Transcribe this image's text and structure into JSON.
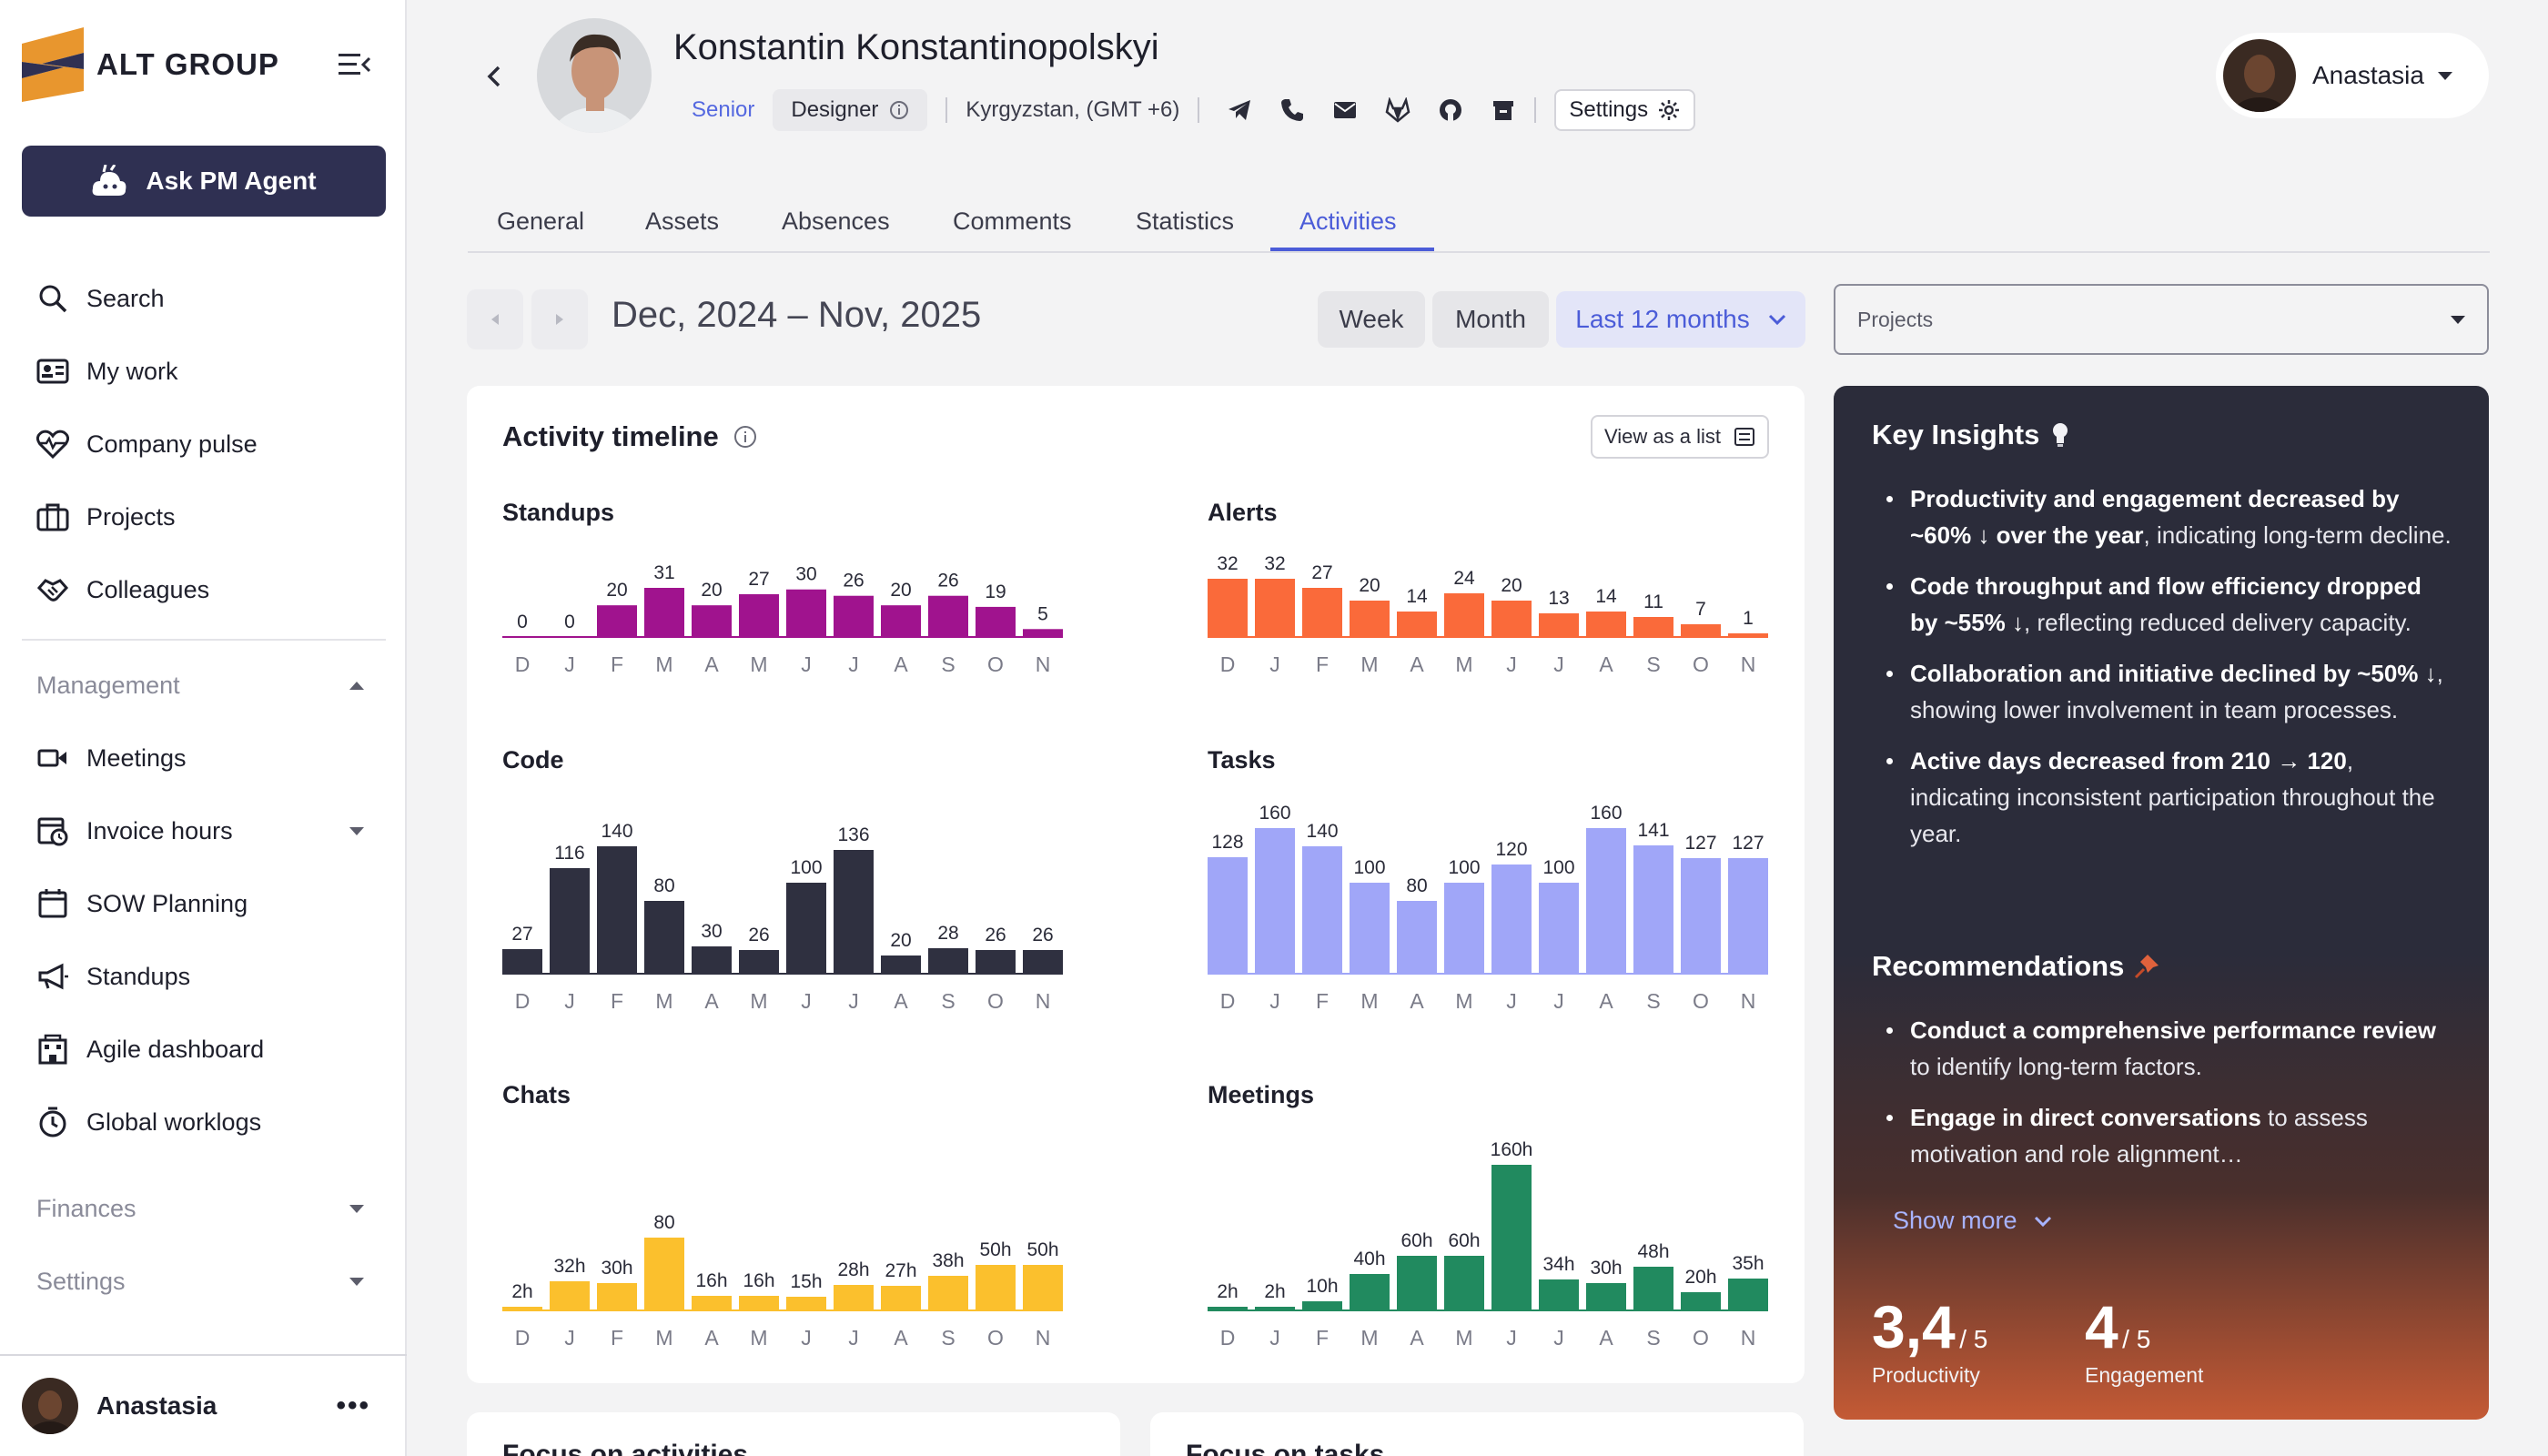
{
  "brand": {
    "name": "ALT GROUP"
  },
  "sidebar": {
    "agent_button": "Ask PM Agent",
    "items": [
      {
        "label": "Search",
        "icon": "search-icon"
      },
      {
        "label": "My work",
        "icon": "id-card-icon"
      },
      {
        "label": "Company pulse",
        "icon": "heart-pulse-icon"
      },
      {
        "label": "Projects",
        "icon": "briefcase-icon"
      },
      {
        "label": "Colleagues",
        "icon": "handshake-icon"
      }
    ],
    "management": {
      "label": "Management",
      "items": [
        {
          "label": "Meetings",
          "icon": "video-icon"
        },
        {
          "label": "Invoice hours",
          "icon": "calendar-clock-icon"
        },
        {
          "label": "SOW Planning",
          "icon": "calendar-icon"
        },
        {
          "label": "Standups",
          "icon": "megaphone-icon"
        },
        {
          "label": "Agile dashboard",
          "icon": "building-icon"
        },
        {
          "label": "Global worklogs",
          "icon": "stopwatch-icon"
        }
      ]
    },
    "finances": "Finances",
    "settings": "Settings",
    "user": {
      "name": "Anastasia",
      "more": "•••"
    }
  },
  "profile": {
    "name": "Konstantin Konstantinopolskyi",
    "level": "Senior",
    "role": "Designer",
    "location": "Kyrgyzstan, (GMT +6)",
    "contact_icons": [
      "telegram-icon",
      "phone-icon",
      "mail-icon",
      "gitlab-icon",
      "github-icon",
      "archive-icon"
    ],
    "settings_label": "Settings"
  },
  "current_user": {
    "name": "Anastasia"
  },
  "tabs": [
    {
      "label": "General"
    },
    {
      "label": "Assets"
    },
    {
      "label": "Absences"
    },
    {
      "label": "Comments"
    },
    {
      "label": "Statistics"
    },
    {
      "label": "Activities",
      "active": true
    }
  ],
  "range": {
    "title": "Dec, 2024 – Nov, 2025",
    "week": "Week",
    "month": "Month",
    "selected": "Last 12 months"
  },
  "projects_select": {
    "value": "Projects"
  },
  "timeline": {
    "title": "Activity timeline",
    "view_list": "View as a list"
  },
  "colors": {
    "standups": "#a0138e",
    "alerts": "#fa6a3a",
    "code": "#2f3040",
    "tasks": "#a0a6f8",
    "chats": "#fbc02d",
    "meetings": "#218a5f",
    "accent": "#4b5cd8"
  },
  "chart_data": [
    {
      "type": "bar",
      "title": "Standups",
      "categories": [
        "D",
        "J",
        "F",
        "M",
        "A",
        "M",
        "J",
        "J",
        "A",
        "S",
        "O",
        "N"
      ],
      "values": [
        0,
        0,
        20,
        31,
        20,
        27,
        30,
        26,
        20,
        26,
        19,
        5
      ],
      "labels": [
        "0",
        "0",
        "20",
        "31",
        "20",
        "27",
        "30",
        "26",
        "20",
        "26",
        "19",
        "5"
      ]
    },
    {
      "type": "bar",
      "title": "Alerts",
      "categories": [
        "D",
        "J",
        "F",
        "M",
        "A",
        "M",
        "J",
        "J",
        "A",
        "S",
        "O",
        "N"
      ],
      "values": [
        32,
        32,
        27,
        20,
        14,
        24,
        20,
        13,
        14,
        11,
        7,
        1
      ],
      "labels": [
        "32",
        "32",
        "27",
        "20",
        "14",
        "24",
        "20",
        "13",
        "14",
        "11",
        "7",
        "1"
      ]
    },
    {
      "type": "bar",
      "title": "Code",
      "categories": [
        "D",
        "J",
        "F",
        "M",
        "A",
        "M",
        "J",
        "J",
        "A",
        "S",
        "O",
        "N"
      ],
      "values": [
        27,
        116,
        140,
        80,
        30,
        26,
        100,
        136,
        20,
        28,
        26,
        26
      ],
      "labels": [
        "27",
        "116",
        "140",
        "80",
        "30",
        "26",
        "100",
        "136",
        "20",
        "28",
        "26",
        "26"
      ]
    },
    {
      "type": "bar",
      "title": "Tasks",
      "categories": [
        "D",
        "J",
        "F",
        "M",
        "A",
        "M",
        "J",
        "J",
        "A",
        "S",
        "O",
        "N"
      ],
      "values": [
        128,
        160,
        140,
        100,
        80,
        100,
        120,
        100,
        160,
        141,
        127,
        127
      ],
      "labels": [
        "128",
        "160",
        "140",
        "100",
        "80",
        "100",
        "120",
        "100",
        "160",
        "141",
        "127",
        "127"
      ]
    },
    {
      "type": "bar",
      "title": "Chats",
      "categories": [
        "D",
        "J",
        "F",
        "M",
        "A",
        "M",
        "J",
        "J",
        "A",
        "S",
        "O",
        "N"
      ],
      "values": [
        2,
        32,
        30,
        80,
        16,
        16,
        15,
        28,
        27,
        38,
        50,
        50
      ],
      "labels": [
        "2h",
        "32h",
        "30h",
        "80",
        "16h",
        "16h",
        "15h",
        "28h",
        "27h",
        "38h",
        "50h",
        "50h"
      ]
    },
    {
      "type": "bar",
      "title": "Meetings",
      "categories": [
        "D",
        "J",
        "F",
        "M",
        "A",
        "M",
        "J",
        "J",
        "A",
        "S",
        "O",
        "N"
      ],
      "values": [
        2,
        2,
        10,
        40,
        60,
        60,
        160,
        34,
        30,
        48,
        20,
        35
      ],
      "labels": [
        "2h",
        "2h",
        "10h",
        "40h",
        "60h",
        "60h",
        "160h",
        "34h",
        "30h",
        "48h",
        "20h",
        "35h"
      ]
    }
  ],
  "insights": {
    "title": "Key Insights",
    "items": [
      {
        "bold": "Productivity and engagement decreased by ~60% ↓ over the year",
        "text": ", indicating long-term decline."
      },
      {
        "bold": "Code throughput and flow efficiency dropped by ~55% ↓",
        "text": ", reflecting reduced delivery capacity."
      },
      {
        "bold": "Collaboration and initiative declined by ~50% ↓",
        "text": ", showing lower involvement in team processes."
      },
      {
        "bold": "Active days decreased from 210 → 120",
        "text": ", indicating inconsistent participation throughout the year."
      }
    ],
    "rec_title": "Recommendations",
    "recommendations": [
      {
        "bold": "Conduct a comprehensive performance review",
        "text": " to identify long-term factors."
      },
      {
        "bold": "Engage in direct conversations",
        "text": " to assess motivation and role alignment…"
      }
    ],
    "show_more": "Show more",
    "productivity": {
      "value": "3,4",
      "max": "/ 5",
      "label": "Productivity"
    },
    "engagement": {
      "value": "4",
      "max": "/ 5",
      "label": "Engagement"
    }
  },
  "bottom_cards": [
    {
      "title": "Focus on activities"
    },
    {
      "title": "Focus on tasks"
    }
  ]
}
